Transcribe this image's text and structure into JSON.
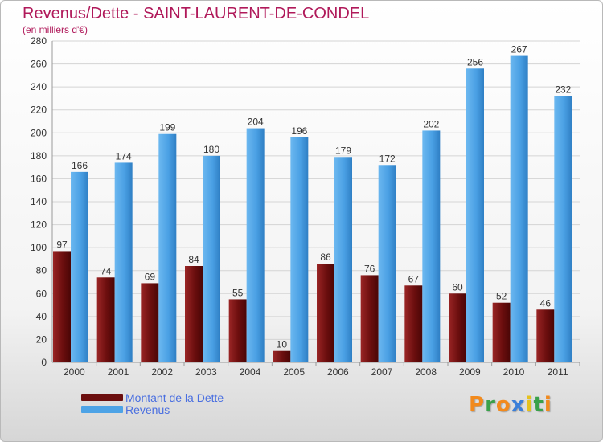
{
  "header": {
    "title": "Revenus/Dette - SAINT-LAURENT-DE-CONDEL",
    "subtitle": "(en milliers d'€)"
  },
  "colors": {
    "title": "#b0195a",
    "dette": "#7a1010",
    "revenus": "#4da3e6",
    "legend_text": "#4a6fe0"
  },
  "legend": {
    "items": [
      {
        "label": "Montant de la Dette",
        "color": "#6b0e0e"
      },
      {
        "label": "Revenus",
        "color": "#4da3e6"
      }
    ]
  },
  "logo": {
    "text": "Proxiti",
    "letter_colors": [
      "#f28a1d",
      "#3aa14a",
      "#f28a1d",
      "#3a7fd9",
      "#e6c21d",
      "#3aa14a",
      "#f28a1d"
    ]
  },
  "chart_data": {
    "type": "bar",
    "categories": [
      "2000",
      "2001",
      "2002",
      "2003",
      "2004",
      "2005",
      "2006",
      "2007",
      "2008",
      "2009",
      "2010",
      "2011"
    ],
    "series": [
      {
        "name": "Montant de la Dette",
        "values": [
          97,
          74,
          69,
          84,
          55,
          10,
          86,
          76,
          67,
          60,
          52,
          46
        ]
      },
      {
        "name": "Revenus",
        "values": [
          166,
          174,
          199,
          180,
          204,
          196,
          179,
          172,
          202,
          256,
          267,
          232
        ]
      }
    ],
    "ylim": [
      0,
      280
    ],
    "yticks": [
      0,
      20,
      40,
      60,
      80,
      100,
      120,
      140,
      160,
      180,
      200,
      220,
      240,
      260,
      280
    ],
    "grid": true,
    "legend_position": "bottom-left"
  }
}
